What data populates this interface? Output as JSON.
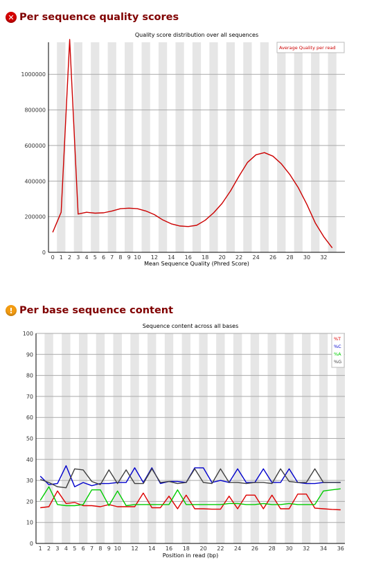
{
  "sections": [
    {
      "title": "Per sequence quality scores",
      "status": "fail",
      "status_icon": "error-icon"
    },
    {
      "title": "Per base sequence content",
      "status": "warn",
      "status_icon": "warning-icon"
    }
  ],
  "chart_data": [
    {
      "type": "line",
      "title": "Quality score distribution over all sequences",
      "xlabel": "Mean Sequence Quality (Phred Score)",
      "ylabel": "",
      "x": [
        0,
        1,
        2,
        3,
        4,
        5,
        6,
        7,
        8,
        9,
        10,
        11,
        12,
        13,
        14,
        15,
        16,
        17,
        18,
        19,
        20,
        21,
        22,
        23,
        24,
        25,
        26,
        27,
        28,
        29,
        30,
        31,
        32,
        33,
        34
      ],
      "x_tick_labels": [
        "0",
        "1",
        "2",
        "3",
        "4",
        "5",
        "6",
        "7",
        "8",
        "9",
        "10",
        "12",
        "14",
        "16",
        "18",
        "20",
        "22",
        "24",
        "26",
        "28",
        "30",
        "32"
      ],
      "xlim": [
        0,
        34
      ],
      "y_tick_labels": [
        "0",
        "200000",
        "400000",
        "600000",
        "800000",
        "1000000"
      ],
      "ylim": [
        0,
        1180000
      ],
      "grid": "horizontal",
      "alternating_bands": true,
      "legend_placement": "top-right",
      "series": [
        {
          "name": "Average Quality per read",
          "color": "#cc0000",
          "values": [
            112000,
            225000,
            1200000,
            215000,
            225000,
            220000,
            222000,
            232000,
            245000,
            248000,
            245000,
            232000,
            212000,
            182000,
            160000,
            148000,
            145000,
            152000,
            180000,
            222000,
            275000,
            345000,
            428000,
            505000,
            548000,
            560000,
            540000,
            497000,
            437000,
            363000,
            270000,
            165000,
            88000,
            25000,
            null
          ]
        }
      ]
    },
    {
      "type": "line",
      "title": "Sequence content across all bases",
      "xlabel": "Position in read (bp)",
      "ylabel": "",
      "x": [
        1,
        2,
        3,
        4,
        5,
        6,
        7,
        8,
        9,
        10,
        11,
        12,
        13,
        14,
        15,
        16,
        17,
        18,
        19,
        20,
        21,
        22,
        23,
        24,
        25,
        26,
        27,
        28,
        29,
        30,
        31,
        32,
        33,
        34,
        35,
        36
      ],
      "x_tick_labels": [
        "1",
        "2",
        "3",
        "4",
        "5",
        "6",
        "7",
        "8",
        "9",
        "10",
        "12",
        "14",
        "16",
        "18",
        "20",
        "22",
        "24",
        "26",
        "28",
        "30",
        "32",
        "34",
        "36"
      ],
      "xlim": [
        1,
        36
      ],
      "y_tick_labels": [
        "0",
        "10",
        "20",
        "30",
        "40",
        "50",
        "60",
        "70",
        "80",
        "90",
        "100"
      ],
      "ylim": [
        0,
        100
      ],
      "grid": "horizontal",
      "alternating_bands": true,
      "legend_placement": "top-right",
      "series": [
        {
          "name": "%T",
          "color": "#dd0000",
          "values": [
            17,
            17.5,
            25,
            19,
            19.5,
            18,
            18,
            17.5,
            18.5,
            17.5,
            17.5,
            17.5,
            24,
            17,
            17,
            22.5,
            16.5,
            23,
            16.5,
            16.5,
            16.3,
            16.3,
            22.5,
            16.5,
            23,
            23,
            16.5,
            23,
            16.5,
            16.5,
            23.5,
            23.5,
            16.8,
            16.5,
            16.2,
            16
          ]
        },
        {
          "name": "%C",
          "color": "#0000cc",
          "values": [
            32,
            28,
            28.5,
            37,
            27,
            29,
            27.5,
            28.5,
            28.5,
            29,
            29,
            36,
            29,
            36,
            28.5,
            29.5,
            29.5,
            29,
            36,
            36,
            29,
            30,
            29,
            35.5,
            29,
            29,
            35.5,
            29,
            29,
            35.5,
            29,
            28.5,
            28.5,
            29,
            29,
            29
          ]
        },
        {
          "name": "%A",
          "color": "#00cc00",
          "values": [
            20.5,
            27,
            18.5,
            18,
            18,
            18.5,
            25.5,
            25.5,
            18,
            25,
            18,
            18.5,
            18.5,
            18.5,
            18.5,
            18.5,
            25.5,
            18.5,
            18.5,
            18.5,
            18.5,
            18.5,
            19,
            19,
            18.5,
            18.5,
            19,
            18.5,
            18.5,
            19,
            18.5,
            18.5,
            18.5,
            25,
            25.5,
            26
          ]
        },
        {
          "name": "%G",
          "color": "#404040",
          "values": [
            30.5,
            29,
            27,
            26.5,
            35.5,
            35,
            29.5,
            28,
            35,
            28.5,
            35,
            28.5,
            28.5,
            35.5,
            29,
            29.5,
            28.5,
            29,
            35.5,
            29,
            28.5,
            35.5,
            29,
            29,
            28.5,
            29,
            29,
            28.5,
            35.5,
            29.5,
            29,
            29,
            35.5,
            29,
            29,
            29
          ]
        }
      ]
    }
  ]
}
